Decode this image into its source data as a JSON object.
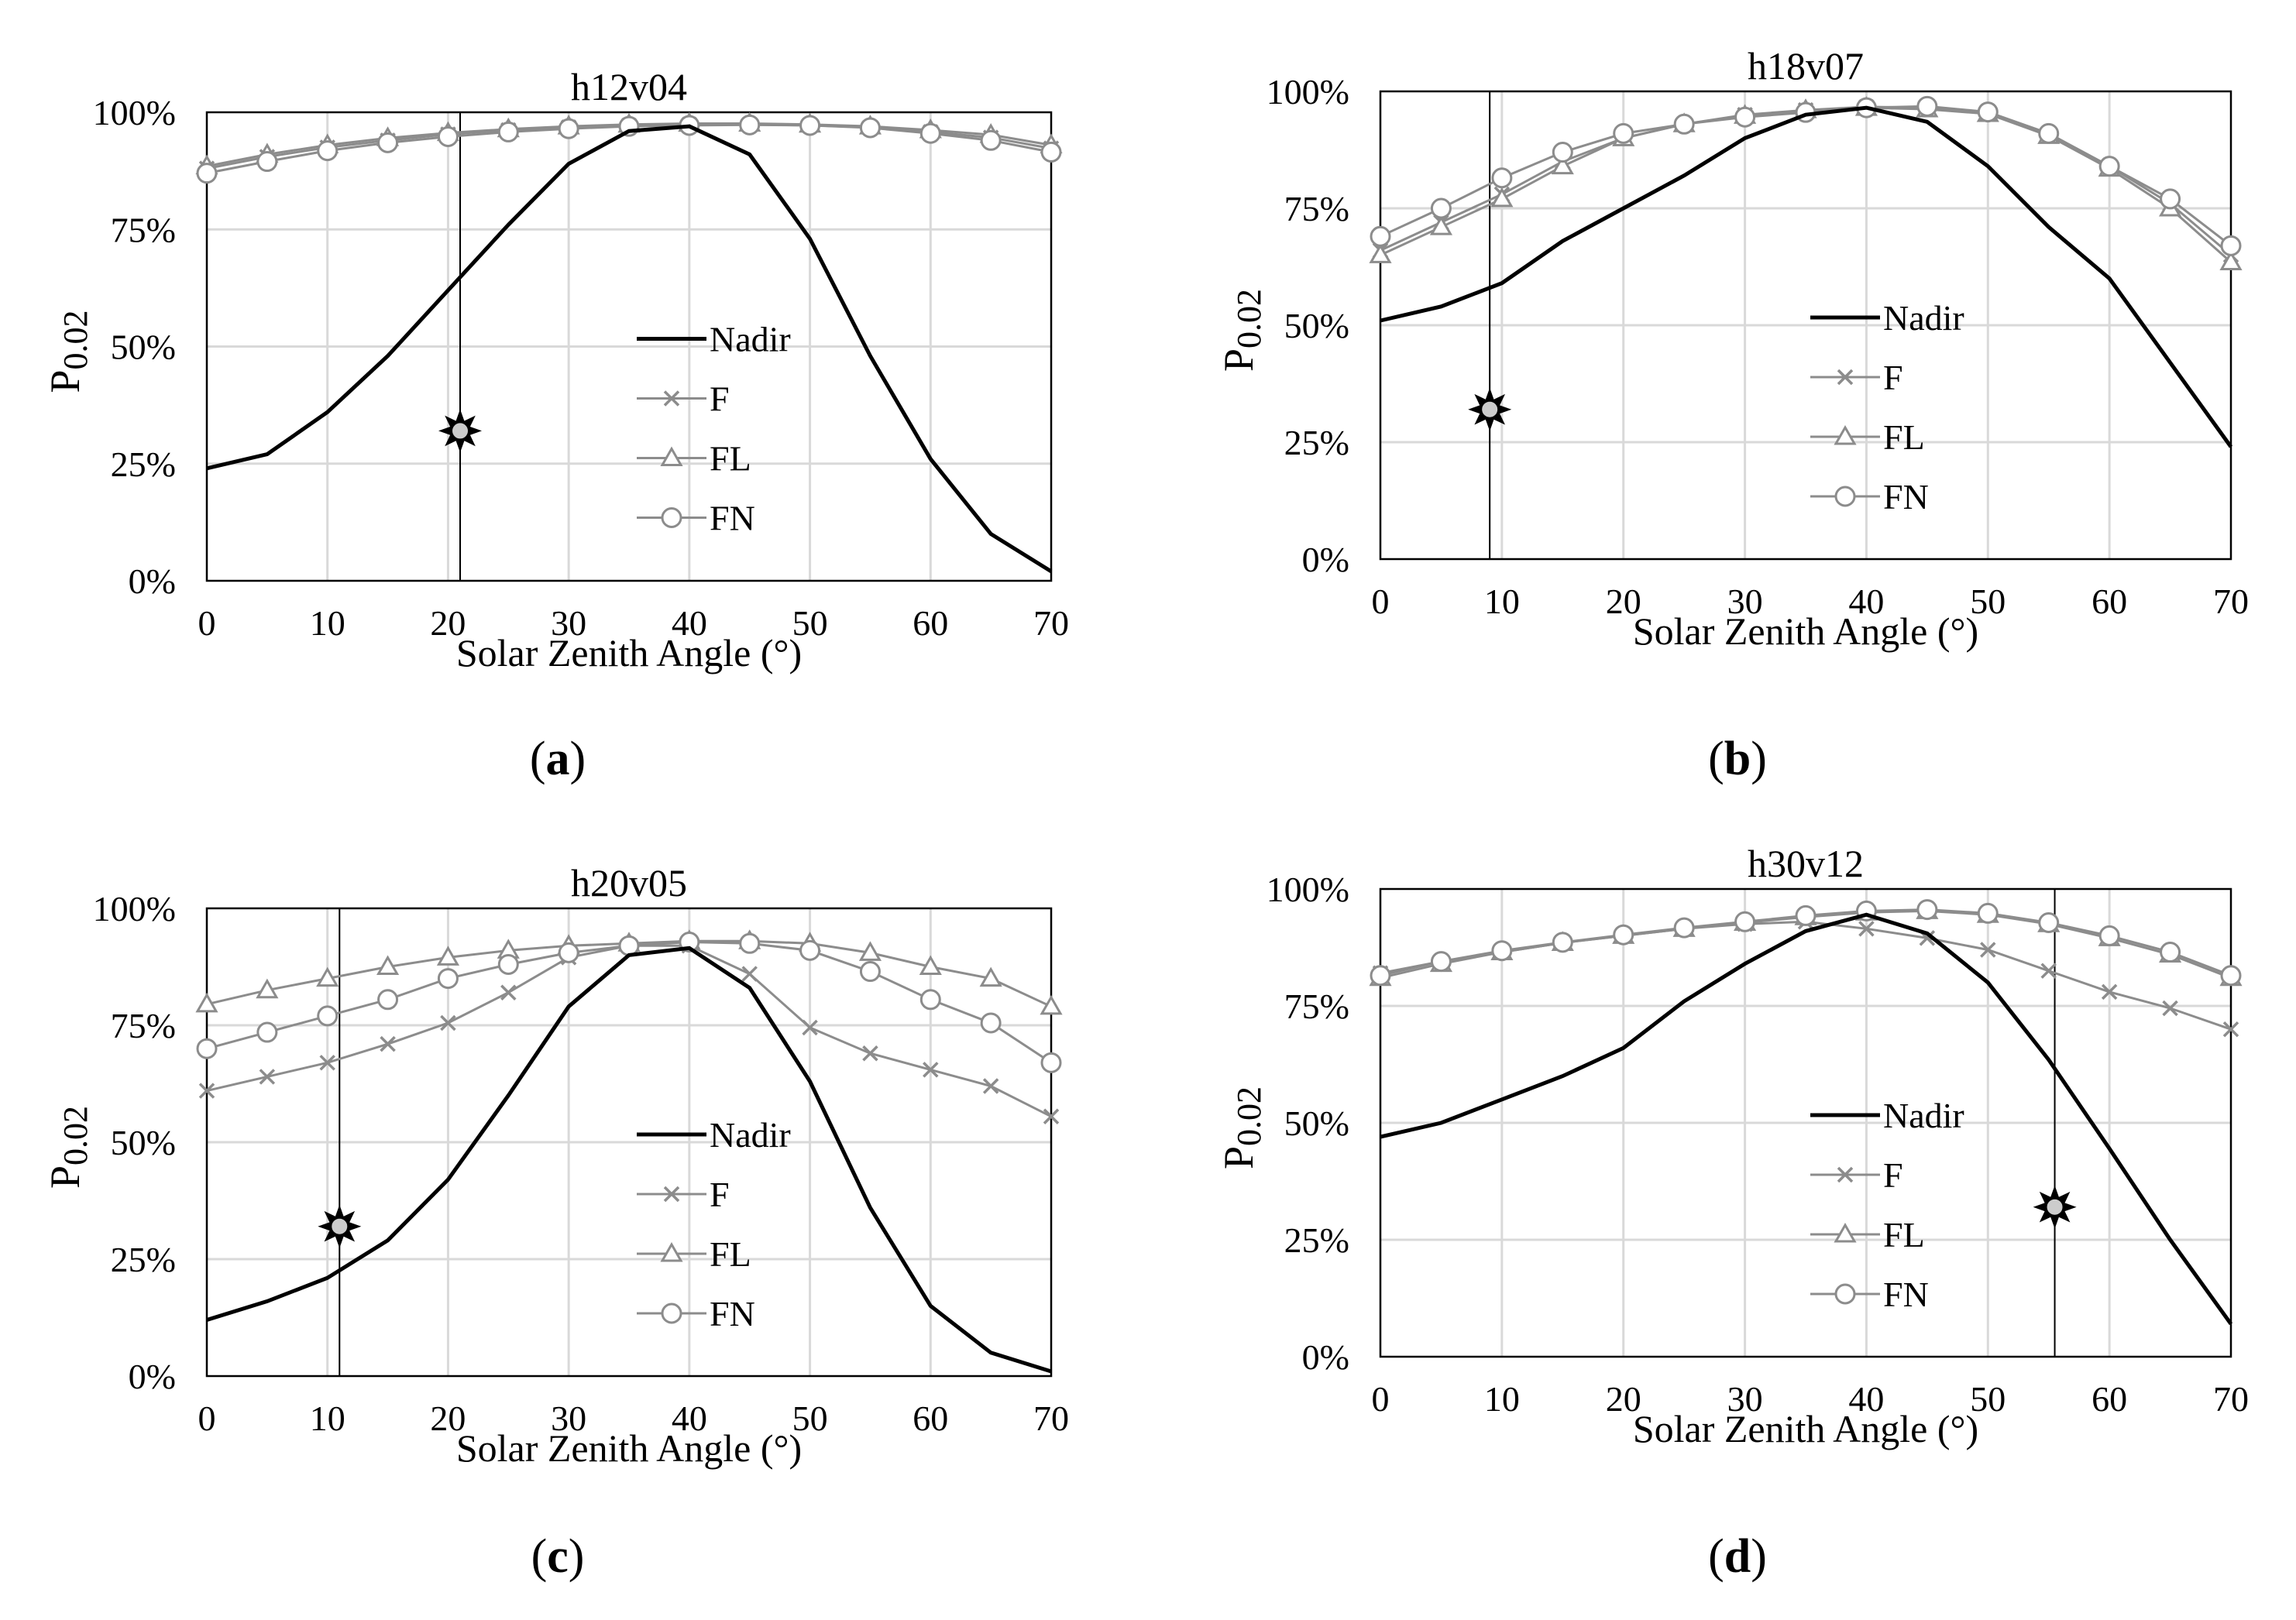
{
  "figure": {
    "panel_labels": [
      "(a)",
      "(b)",
      "(c)",
      "(d)"
    ]
  },
  "colors": {
    "nadir": "#000000",
    "view": "#8c8c8c",
    "grid": "#d9d9d9",
    "frame": "#000000",
    "marker_fill": "#cccccc"
  },
  "chart_data": [
    {
      "type": "line",
      "panel": "(a)",
      "title": "h12v04",
      "xlabel": "Solar Zenith Angle (°)",
      "ylabel_main": "P",
      "ylabel_sub": "0.02",
      "xlim": [
        0,
        70
      ],
      "ylim": [
        0,
        100
      ],
      "xticks": [
        0,
        10,
        20,
        30,
        40,
        50,
        60,
        70
      ],
      "yticks": [
        "0%",
        "25%",
        "50%",
        "75%",
        "100%"
      ],
      "x": [
        0,
        5,
        10,
        15,
        20,
        25,
        30,
        35,
        40,
        45,
        50,
        55,
        60,
        65,
        70
      ],
      "series": [
        {
          "name": "Nadir",
          "marker": "none",
          "values": [
            24,
            27,
            36,
            48,
            62,
            76,
            89,
            96,
            97,
            91,
            73,
            48,
            26,
            10,
            2
          ]
        },
        {
          "name": "F",
          "marker": "x",
          "values": [
            88,
            90.5,
            92.5,
            94,
            95.3,
            96.2,
            96.8,
            97.2,
            97.4,
            97.4,
            97.2,
            96.8,
            95.8,
            94.6,
            92.3
          ]
        },
        {
          "name": "FL",
          "marker": "triangle",
          "values": [
            88.5,
            91,
            93,
            94.5,
            95.6,
            96.4,
            97,
            97.4,
            97.6,
            97.6,
            97.4,
            97,
            96.2,
            95.2,
            93
          ]
        },
        {
          "name": "FN",
          "marker": "circle",
          "values": [
            87,
            89.5,
            91.8,
            93.5,
            94.8,
            95.8,
            96.5,
            97,
            97.2,
            97.3,
            97.2,
            96.7,
            95.5,
            94,
            91.5
          ]
        }
      ],
      "sza_marker": {
        "x": 21,
        "y": 32
      }
    },
    {
      "type": "line",
      "panel": "(b)",
      "title": "h18v07",
      "xlabel": "Solar Zenith Angle (°)",
      "ylabel_main": "P",
      "ylabel_sub": "0.02",
      "xlim": [
        0,
        70
      ],
      "ylim": [
        0,
        100
      ],
      "xticks": [
        0,
        10,
        20,
        30,
        40,
        50,
        60,
        70
      ],
      "yticks": [
        "0%",
        "25%",
        "50%",
        "75%",
        "100%"
      ],
      "x": [
        0,
        5,
        10,
        15,
        20,
        25,
        30,
        35,
        40,
        45,
        50,
        55,
        60,
        65,
        70
      ],
      "series": [
        {
          "name": "Nadir",
          "marker": "none",
          "values": [
            51,
            54,
            59,
            68,
            75,
            82,
            90,
            95,
            96.5,
            93.5,
            84,
            71,
            60,
            42,
            24
          ]
        },
        {
          "name": "F",
          "marker": "x",
          "values": [
            66,
            72,
            78,
            85,
            90,
            93,
            95,
            96,
            96.7,
            96.5,
            95.5,
            91,
            84,
            76,
            65
          ]
        },
        {
          "name": "FL",
          "marker": "triangle",
          "values": [
            65,
            71,
            77,
            84,
            90,
            93,
            94.8,
            96,
            96.5,
            96.2,
            95.2,
            90.5,
            83.5,
            75,
            63.5
          ]
        },
        {
          "name": "FN",
          "marker": "circle",
          "values": [
            69,
            75,
            81.5,
            87,
            91,
            93,
            94.5,
            95.5,
            96.5,
            96.8,
            95.6,
            91,
            84,
            77,
            67
          ]
        }
      ],
      "sza_marker": {
        "x": 9,
        "y": 32
      }
    },
    {
      "type": "line",
      "panel": "(c)",
      "title": "h20v05",
      "xlabel": "Solar Zenith Angle (°)",
      "ylabel_main": "P",
      "ylabel_sub": "0.02",
      "xlim": [
        0,
        70
      ],
      "ylim": [
        0,
        100
      ],
      "xticks": [
        0,
        10,
        20,
        30,
        40,
        50,
        60,
        70
      ],
      "yticks": [
        "0%",
        "25%",
        "50%",
        "75%",
        "100%"
      ],
      "x": [
        0,
        5,
        10,
        15,
        20,
        25,
        30,
        35,
        40,
        45,
        50,
        55,
        60,
        65,
        70
      ],
      "series": [
        {
          "name": "Nadir",
          "marker": "none",
          "values": [
            12,
            16,
            21,
            29,
            42,
            60,
            79,
            90,
            91.5,
            83,
            63,
            36,
            15,
            5,
            1
          ]
        },
        {
          "name": "F",
          "marker": "x",
          "values": [
            61,
            64,
            67,
            71,
            75.5,
            82,
            89.5,
            92,
            92,
            86,
            74.5,
            69,
            65.5,
            62,
            55.5
          ]
        },
        {
          "name": "FL",
          "marker": "triangle",
          "values": [
            79.5,
            82.5,
            85,
            87.5,
            89.5,
            91,
            92,
            92.5,
            93,
            93,
            92.5,
            90.5,
            87.5,
            85,
            79
          ]
        },
        {
          "name": "FN",
          "marker": "circle",
          "values": [
            70,
            73.5,
            77,
            80.5,
            85,
            88,
            90.5,
            92,
            92.8,
            92.5,
            91,
            86.5,
            80.5,
            75.5,
            67
          ]
        }
      ],
      "sza_marker": {
        "x": 11,
        "y": 32
      }
    },
    {
      "type": "line",
      "panel": "(d)",
      "title": "h30v12",
      "xlabel": "Solar Zenith Angle (°)",
      "ylabel_main": "P",
      "ylabel_sub": "0.02",
      "xlim": [
        0,
        70
      ],
      "ylim": [
        0,
        100
      ],
      "xticks": [
        0,
        10,
        20,
        30,
        40,
        50,
        60,
        70
      ],
      "yticks": [
        "0%",
        "25%",
        "50%",
        "75%",
        "100%"
      ],
      "x": [
        0,
        5,
        10,
        15,
        20,
        25,
        30,
        35,
        40,
        45,
        50,
        55,
        60,
        65,
        70
      ],
      "series": [
        {
          "name": "Nadir",
          "marker": "none",
          "values": [
            47,
            50,
            55,
            60,
            66,
            76,
            84,
            91,
            94.5,
            90.5,
            80,
            63.5,
            44.5,
            25,
            7
          ]
        },
        {
          "name": "F",
          "marker": "x",
          "values": [
            82,
            84.5,
            86.5,
            88.5,
            90,
            91.5,
            92.5,
            93,
            91.5,
            89.5,
            87,
            82.5,
            78,
            74.5,
            70
          ]
        },
        {
          "name": "FL",
          "marker": "triangle",
          "values": [
            81,
            84,
            86.5,
            88.5,
            90,
            91.5,
            92.8,
            94,
            95,
            95.3,
            94.5,
            92.5,
            89.5,
            86,
            81
          ]
        },
        {
          "name": "FN",
          "marker": "circle",
          "values": [
            81.5,
            84.5,
            86.8,
            88.6,
            90.2,
            91.7,
            93,
            94.3,
            95.3,
            95.6,
            94.8,
            92.8,
            90,
            86.5,
            81.5
          ]
        }
      ],
      "sza_marker": {
        "x": 55.5,
        "y": 32
      }
    }
  ]
}
